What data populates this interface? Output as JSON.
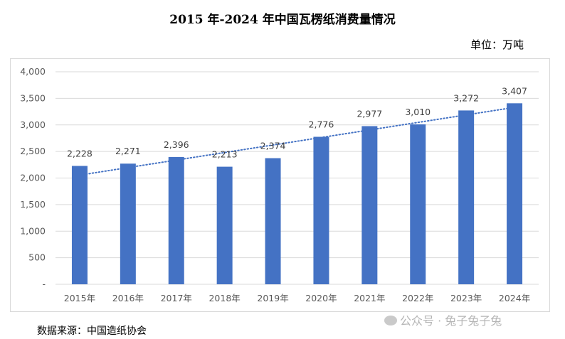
{
  "title": "2015 年-2024 年中国瓦楞纸消费量情况",
  "unit": "单位：万吨",
  "source": "数据来源：中国造纸协会",
  "watermark": "公众号 · 兔子兔子兔",
  "colors": {
    "bar": "#4472C4",
    "trend": "#4472C4",
    "grid": "#d9d9d9"
  },
  "chart_data": {
    "type": "bar",
    "categories": [
      "2015年",
      "2016年",
      "2017年",
      "2018年",
      "2019年",
      "2020年",
      "2021年",
      "2022年",
      "2023年",
      "2024年"
    ],
    "values": [
      2228,
      2271,
      2396,
      2213,
      2374,
      2776,
      2977,
      3010,
      3272,
      3407
    ],
    "data_labels": [
      "2,228",
      "2,271",
      "2,396",
      "2,213",
      "2,374",
      "2,776",
      "2,977",
      "3,010",
      "3,272",
      "3,407"
    ],
    "yticks": [
      "-",
      "500",
      "1,000",
      "1,500",
      "2,000",
      "2,500",
      "3,000",
      "3,500",
      "4,000"
    ],
    "ylim": [
      0,
      4000
    ],
    "trendline": "linear (dotted)",
    "grid": true,
    "legend": "none"
  }
}
